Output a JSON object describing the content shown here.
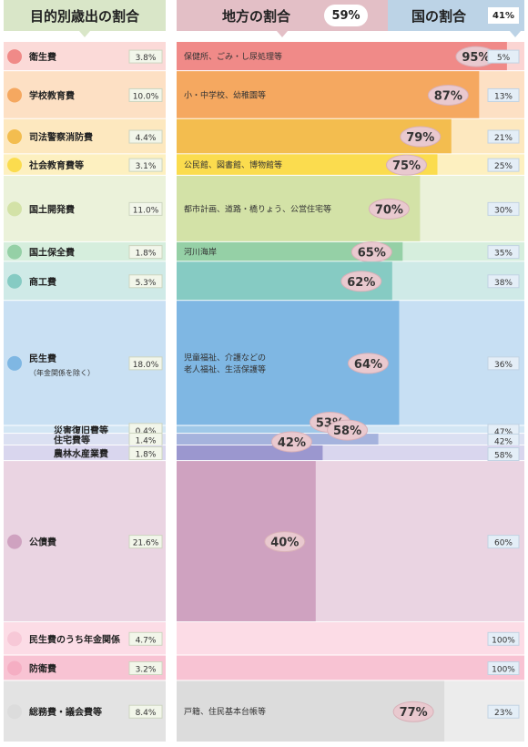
{
  "header": {
    "left_title": "目的別歳出の割合",
    "mid_title": "地方の割合",
    "mid_pct": "59%",
    "right_title": "国の割合",
    "right_pct": "41%"
  },
  "colors": {
    "left_header": "#d9e6c8",
    "mid_header": "#e3bfc6",
    "right_header": "#bcd3e6"
  },
  "chart_data": {
    "type": "bar",
    "orientation": "horizontal-stacked-100",
    "series": [
      {
        "name": "地方の割合",
        "share": 59
      },
      {
        "name": "国の割合",
        "share": 41
      }
    ],
    "rows": [
      {
        "label": "衛生費",
        "share": "3.8%",
        "local": 95,
        "national": 5,
        "note": "保健所、ごみ・し尿処理等",
        "color": "#f08a88",
        "light": "#fbd5d3",
        "label_bg": "#fbdad8",
        "icon": "nurse-icon"
      },
      {
        "label": "学校教育費",
        "share": "10.0%",
        "local": 87,
        "national": 13,
        "note": "小・中学校、幼稚園等",
        "color": "#f5a860",
        "light": "#fde0c4",
        "label_bg": "#fde0c4",
        "icon": "pencil-icon"
      },
      {
        "label": "司法警察消防費",
        "share": "4.4%",
        "local": 79,
        "national": 21,
        "note": "",
        "color": "#f3bd4f",
        "light": "#fde8bf",
        "label_bg": "#fde8bf",
        "icon": "fire-truck-icon"
      },
      {
        "label": "社会教育費等",
        "share": "3.1%",
        "local": 75,
        "national": 25,
        "note": "公民館、図書館、博物館等",
        "color": "#fbdc4e",
        "light": "#fdf0c0",
        "label_bg": "#fdf0c0",
        "icon": "book-icon"
      },
      {
        "label": "国土開発費",
        "share": "11.0%",
        "local": 70,
        "national": 30,
        "note": "都市計画、道路・橋りょう、公営住宅等",
        "color": "#d3e2a7",
        "light": "#ebf2da",
        "label_bg": "#ebf2da",
        "icon": "building-icon"
      },
      {
        "label": "国土保全費",
        "share": "1.8%",
        "local": 65,
        "national": 35,
        "note": "河川海岸",
        "color": "#95d0a6",
        "light": "#d6eedd",
        "label_bg": "#d6eedd",
        "icon": "mountain-icon"
      },
      {
        "label": "商工費",
        "share": "5.3%",
        "local": 62,
        "national": 38,
        "note": "",
        "color": "#86cbc3",
        "light": "#cfeae7",
        "label_bg": "#cfeae7",
        "icon": "gear-icon"
      },
      {
        "label": "民生費",
        "sublabel": "（年金関係を除く）",
        "share": "18.0%",
        "local": 64,
        "national": 36,
        "note": "児童福祉、介護などの\n老人福祉、生活保護等",
        "color": "#7fb7e3",
        "light": "#c7dff3",
        "label_bg": "#c9e0f3",
        "icon": "family-icon"
      },
      {
        "label": "災害復旧費等",
        "share": "0.4%",
        "local": 53,
        "national": 47,
        "note": "",
        "color": "#9fc8e8",
        "light": "#d3e6f4",
        "label_bg": "#d3e6f4",
        "icon": "disaster-icon"
      },
      {
        "label": "住宅費等",
        "share": "1.4%",
        "local": 58,
        "national": 42,
        "note": "",
        "color": "#a5b3dd",
        "light": "#dbe0f2",
        "label_bg": "#dbe0f2",
        "icon": "house-icon"
      },
      {
        "label": "農林水産業費",
        "share": "1.8%",
        "local": 42,
        "national": 58,
        "note": "",
        "color": "#9b97cf",
        "light": "#d9d6ee",
        "label_bg": "#d9d6ee",
        "icon": "farm-icon"
      },
      {
        "label": "公債費",
        "share": "21.6%",
        "local": 40,
        "national": 60,
        "note": "",
        "color": "#cfa2c0",
        "light": "#ead4e2",
        "label_bg": "#ead4e2",
        "icon": "wallet-icon"
      },
      {
        "label": "民生費のうち年金関係",
        "share": "4.7%",
        "local": 0,
        "national": 100,
        "note": "",
        "color": "#f7c8d7",
        "light": "#fcdce6",
        "label_bg": "#fcdce6",
        "icon": "elderly-icon"
      },
      {
        "label": "防衛費",
        "share": "3.2%",
        "local": 0,
        "national": 100,
        "note": "",
        "color": "#f5aec3",
        "light": "#f8c3d3",
        "label_bg": "#f8c3d3",
        "icon": "soldier-icon"
      },
      {
        "label": "総務費・議会費等",
        "share": "8.4%",
        "local": 77,
        "national": 23,
        "note": "戸籍、住民基本台帳等",
        "color": "#dcdcdc",
        "light": "#ececec",
        "label_bg": "#e3e3e3",
        "icon": "people-icon"
      }
    ]
  }
}
